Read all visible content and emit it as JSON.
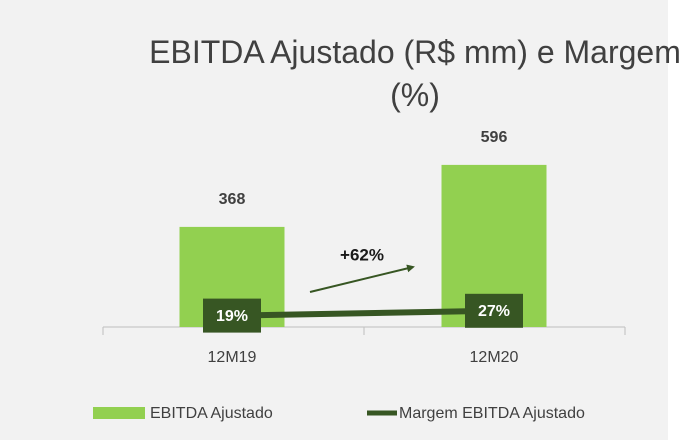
{
  "chart_data": {
    "type": "bar",
    "title": "EBITDA Ajustado (R$ mm) e Margem (%)",
    "annotation": "+62%",
    "categories": [
      "12M19",
      "12M20"
    ],
    "series": [
      {
        "name": "EBITDA Ajustado",
        "type": "bar",
        "color": "#92d050",
        "values": [
          368,
          596
        ]
      },
      {
        "name": "Margem EBITDA Ajustado",
        "type": "line",
        "axis": "y2",
        "color": "#375623",
        "values": [
          19,
          27
        ],
        "value_labels": [
          "19%",
          "27%"
        ]
      }
    ],
    "legend": "bottom"
  }
}
